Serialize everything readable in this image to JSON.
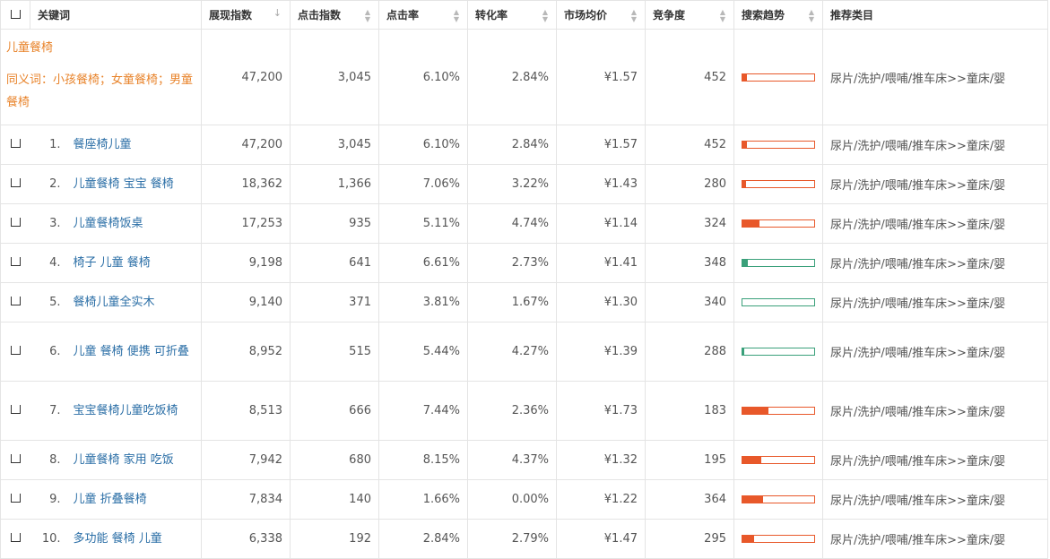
{
  "header": {
    "columns": [
      "关键词",
      "展现指数",
      "点击指数",
      "点击率",
      "转化率",
      "市场均价",
      "竞争度",
      "搜索趋势",
      "推荐类目"
    ]
  },
  "main_keyword": {
    "title": "儿童餐椅",
    "synonyms": "同义词：小孩餐椅；女童餐椅；男童餐椅",
    "impressions": "47,200",
    "clicks": "3,045",
    "ctr": "6.10%",
    "cvr": "2.84%",
    "price": "¥1.57",
    "competition": "452",
    "trend": {
      "level": 0.06,
      "color": "orange"
    },
    "category": "尿片/洗护/喂哺/推车床>>童床/婴"
  },
  "rows": [
    {
      "idx": "1.",
      "keyword": "餐座椅儿童",
      "impressions": "47,200",
      "clicks": "3,045",
      "ctr": "6.10%",
      "cvr": "2.84%",
      "price": "¥1.57",
      "competition": "452",
      "trend": {
        "level": 0.06,
        "color": "orange"
      },
      "category": "尿片/洗护/喂哺/推车床>>童床/婴"
    },
    {
      "idx": "2.",
      "keyword": "儿童餐椅 宝宝 餐椅",
      "impressions": "18,362",
      "clicks": "1,366",
      "ctr": "7.06%",
      "cvr": "3.22%",
      "price": "¥1.43",
      "competition": "280",
      "trend": {
        "level": 0.05,
        "color": "orange"
      },
      "category": "尿片/洗护/喂哺/推车床>>童床/婴"
    },
    {
      "idx": "3.",
      "keyword": "儿童餐椅饭桌",
      "impressions": "17,253",
      "clicks": "935",
      "ctr": "5.11%",
      "cvr": "4.74%",
      "price": "¥1.14",
      "competition": "324",
      "trend": {
        "level": 0.24,
        "color": "orange"
      },
      "category": "尿片/洗护/喂哺/推车床>>童床/婴"
    },
    {
      "idx": "4.",
      "keyword": "椅子 儿童 餐椅",
      "impressions": "9,198",
      "clicks": "641",
      "ctr": "6.61%",
      "cvr": "2.73%",
      "price": "¥1.41",
      "competition": "348",
      "trend": {
        "level": 0.08,
        "color": "green"
      },
      "category": "尿片/洗护/喂哺/推车床>>童床/婴"
    },
    {
      "idx": "5.",
      "keyword": "餐椅儿童全实木",
      "impressions": "9,140",
      "clicks": "371",
      "ctr": "3.81%",
      "cvr": "1.67%",
      "price": "¥1.30",
      "competition": "340",
      "trend": {
        "level": 0.0,
        "color": "green"
      },
      "category": "尿片/洗护/喂哺/推车床>>童床/婴"
    },
    {
      "idx": "6.",
      "keyword": "儿童 餐椅 便携 可折叠",
      "impressions": "8,952",
      "clicks": "515",
      "ctr": "5.44%",
      "cvr": "4.27%",
      "price": "¥1.39",
      "competition": "288",
      "trend": {
        "level": 0.03,
        "color": "green"
      },
      "category": "尿片/洗护/喂哺/推车床>>童床/婴"
    },
    {
      "idx": "7.",
      "keyword": "宝宝餐椅儿童吃饭椅",
      "impressions": "8,513",
      "clicks": "666",
      "ctr": "7.44%",
      "cvr": "2.36%",
      "price": "¥1.73",
      "competition": "183",
      "trend": {
        "level": 0.36,
        "color": "orange"
      },
      "category": "尿片/洗护/喂哺/推车床>>童床/婴"
    },
    {
      "idx": "8.",
      "keyword": "儿童餐椅 家用 吃饭",
      "impressions": "7,942",
      "clicks": "680",
      "ctr": "8.15%",
      "cvr": "4.37%",
      "price": "¥1.32",
      "competition": "195",
      "trend": {
        "level": 0.26,
        "color": "orange"
      },
      "category": "尿片/洗护/喂哺/推车床>>童床/婴"
    },
    {
      "idx": "9.",
      "keyword": "儿童 折叠餐椅",
      "impressions": "7,834",
      "clicks": "140",
      "ctr": "1.66%",
      "cvr": "0.00%",
      "price": "¥1.22",
      "competition": "364",
      "trend": {
        "level": 0.29,
        "color": "orange"
      },
      "category": "尿片/洗护/喂哺/推车床>>童床/婴"
    },
    {
      "idx": "10.",
      "keyword": "多功能 餐椅 儿童",
      "impressions": "6,338",
      "clicks": "192",
      "ctr": "2.84%",
      "cvr": "2.79%",
      "price": "¥1.47",
      "competition": "295",
      "trend": {
        "level": 0.16,
        "color": "orange"
      },
      "category": "尿片/洗护/喂哺/推车床>>童床/婴"
    }
  ]
}
